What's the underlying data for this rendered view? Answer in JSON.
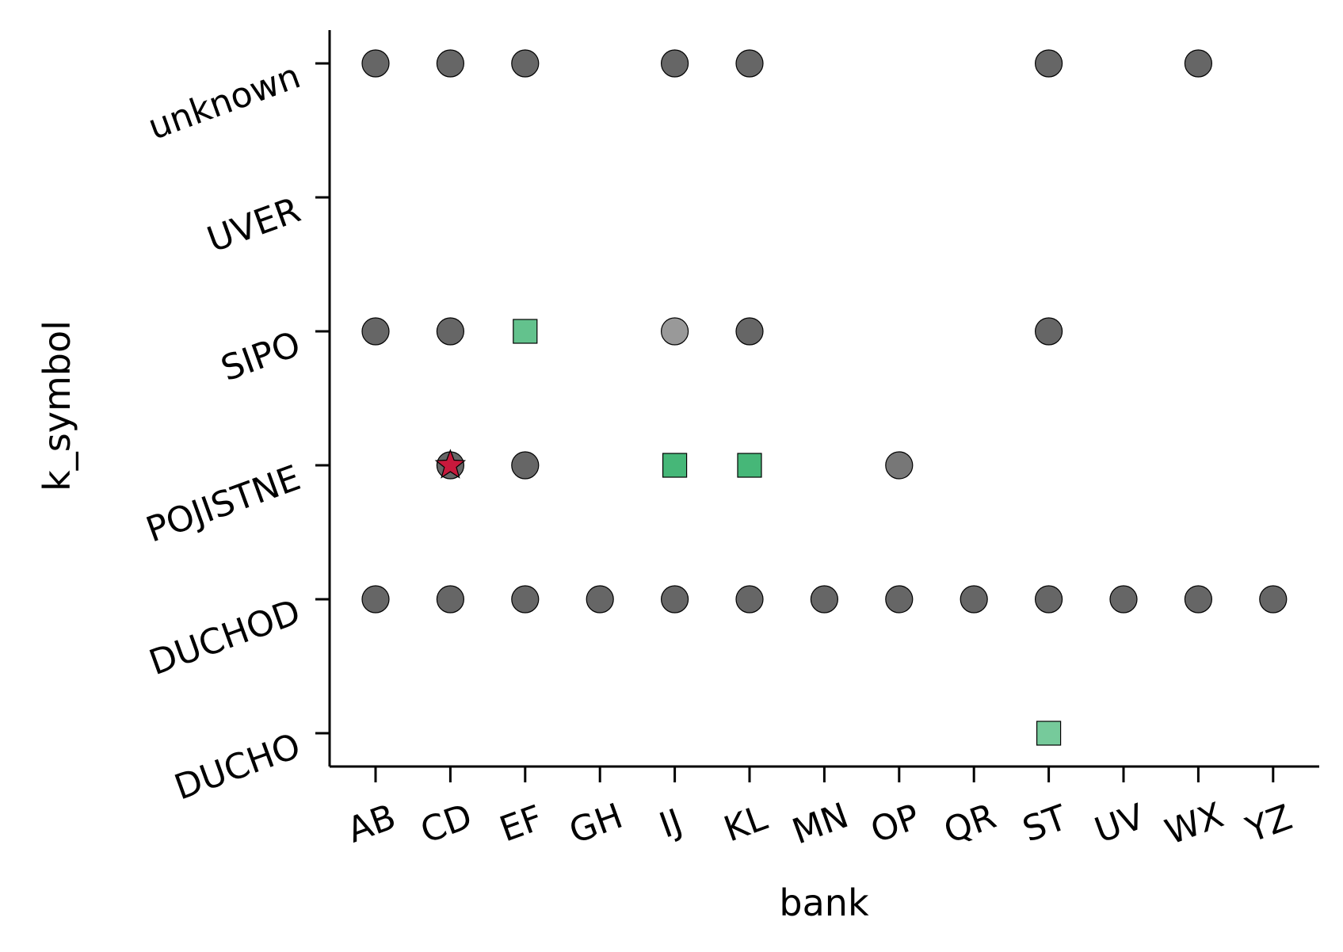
{
  "chart_data": {
    "type": "scatter",
    "title": "",
    "xlabel": "bank",
    "ylabel": "k_symbol",
    "x_categories": [
      "AB",
      "CD",
      "EF",
      "GH",
      "IJ",
      "KL",
      "MN",
      "OP",
      "QR",
      "ST",
      "UV",
      "WX",
      "YZ"
    ],
    "y_categories": [
      "DUCHO",
      "DUCHOD",
      "POJISTNE",
      "SIPO",
      "UVER",
      "unknown"
    ],
    "grid": false,
    "legend": "none",
    "colors": {
      "circle": "#555555",
      "square": "#3cb371",
      "star": "#c8193c",
      "edge": "#000000"
    },
    "points": [
      {
        "x": "AB",
        "y": "unknown",
        "marker": "circle",
        "opacity": 0.9
      },
      {
        "x": "CD",
        "y": "unknown",
        "marker": "circle",
        "opacity": 0.9
      },
      {
        "x": "EF",
        "y": "unknown",
        "marker": "circle",
        "opacity": 0.9
      },
      {
        "x": "IJ",
        "y": "unknown",
        "marker": "circle",
        "opacity": 0.9
      },
      {
        "x": "KL",
        "y": "unknown",
        "marker": "circle",
        "opacity": 0.9
      },
      {
        "x": "ST",
        "y": "unknown",
        "marker": "circle",
        "opacity": 0.9
      },
      {
        "x": "WX",
        "y": "unknown",
        "marker": "circle",
        "opacity": 0.9
      },
      {
        "x": "AB",
        "y": "SIPO",
        "marker": "circle",
        "opacity": 0.9
      },
      {
        "x": "CD",
        "y": "SIPO",
        "marker": "circle",
        "opacity": 0.9
      },
      {
        "x": "EF",
        "y": "SIPO",
        "marker": "square",
        "opacity": 0.8
      },
      {
        "x": "IJ",
        "y": "SIPO",
        "marker": "circle",
        "opacity": 0.6
      },
      {
        "x": "KL",
        "y": "SIPO",
        "marker": "circle",
        "opacity": 0.9
      },
      {
        "x": "ST",
        "y": "SIPO",
        "marker": "circle",
        "opacity": 0.9
      },
      {
        "x": "CD",
        "y": "POJISTNE",
        "marker": "circle",
        "opacity": 0.9
      },
      {
        "x": "CD",
        "y": "POJISTNE",
        "marker": "star",
        "opacity": 1.0
      },
      {
        "x": "EF",
        "y": "POJISTNE",
        "marker": "circle",
        "opacity": 0.9
      },
      {
        "x": "IJ",
        "y": "POJISTNE",
        "marker": "square",
        "opacity": 0.95
      },
      {
        "x": "KL",
        "y": "POJISTNE",
        "marker": "square",
        "opacity": 0.95
      },
      {
        "x": "OP",
        "y": "POJISTNE",
        "marker": "circle",
        "opacity": 0.8
      },
      {
        "x": "AB",
        "y": "DUCHOD",
        "marker": "circle",
        "opacity": 0.9
      },
      {
        "x": "CD",
        "y": "DUCHOD",
        "marker": "circle",
        "opacity": 0.9
      },
      {
        "x": "EF",
        "y": "DUCHOD",
        "marker": "circle",
        "opacity": 0.9
      },
      {
        "x": "GH",
        "y": "DUCHOD",
        "marker": "circle",
        "opacity": 0.9
      },
      {
        "x": "IJ",
        "y": "DUCHOD",
        "marker": "circle",
        "opacity": 0.9
      },
      {
        "x": "KL",
        "y": "DUCHOD",
        "marker": "circle",
        "opacity": 0.9
      },
      {
        "x": "MN",
        "y": "DUCHOD",
        "marker": "circle",
        "opacity": 0.9
      },
      {
        "x": "OP",
        "y": "DUCHOD",
        "marker": "circle",
        "opacity": 0.9
      },
      {
        "x": "QR",
        "y": "DUCHOD",
        "marker": "circle",
        "opacity": 0.9
      },
      {
        "x": "ST",
        "y": "DUCHOD",
        "marker": "circle",
        "opacity": 0.9
      },
      {
        "x": "UV",
        "y": "DUCHOD",
        "marker": "circle",
        "opacity": 0.9
      },
      {
        "x": "WX",
        "y": "DUCHOD",
        "marker": "circle",
        "opacity": 0.9
      },
      {
        "x": "YZ",
        "y": "DUCHOD",
        "marker": "circle",
        "opacity": 0.9
      },
      {
        "x": "ST",
        "y": "DUCHO",
        "marker": "square",
        "opacity": 0.7
      }
    ]
  }
}
